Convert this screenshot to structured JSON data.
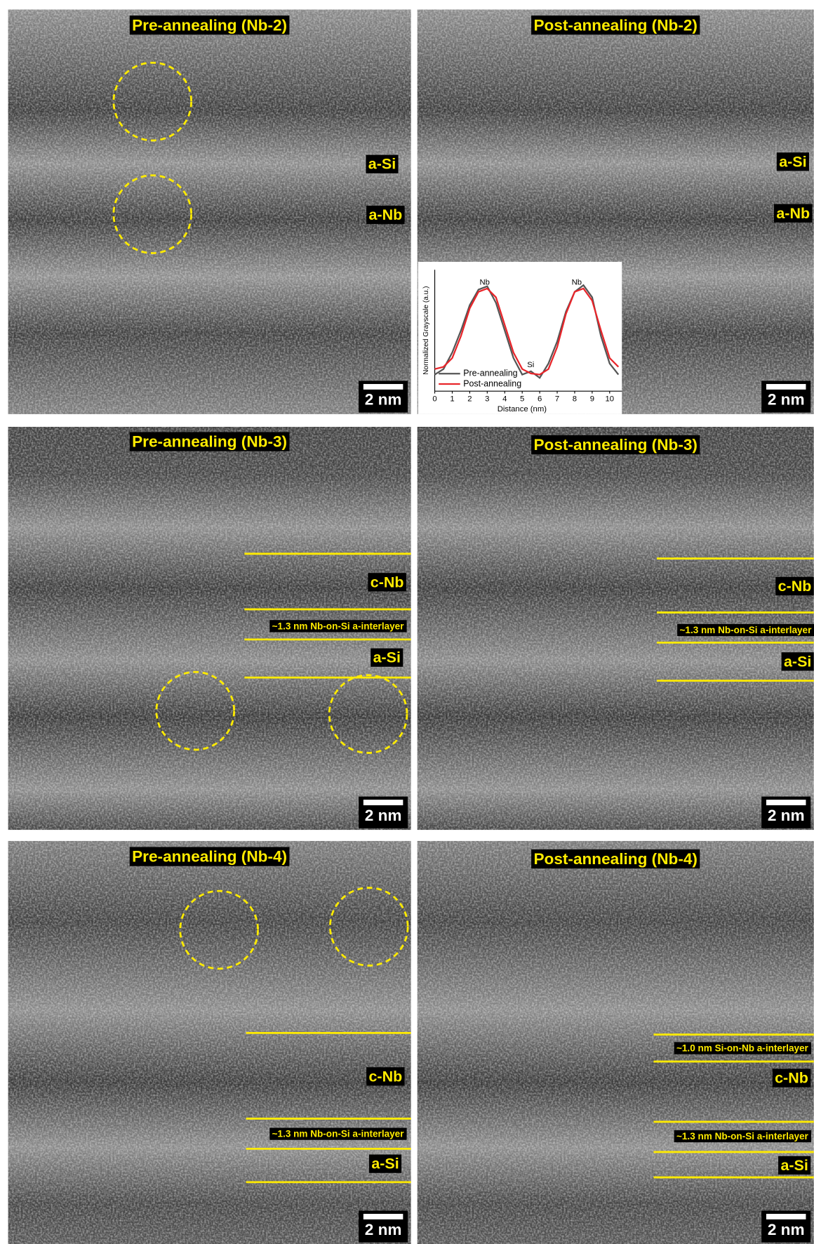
{
  "panels": [
    {
      "title": "Pre-annealing (Nb-2)",
      "labels": [
        "a-Si",
        "a-Nb"
      ],
      "scale_bar": "2 nm"
    },
    {
      "title": "Post-annealing (Nb-2)",
      "labels": [
        "a-Si",
        "a-Nb"
      ],
      "scale_bar": "2 nm"
    },
    {
      "title": "Pre-annealing (Nb-3)",
      "labels": [
        "c-Nb",
        "~1.3 nm Nb-on-Si a-interlayer",
        "a-Si"
      ],
      "scale_bar": "2 nm"
    },
    {
      "title": "Post-annealing (Nb-3)",
      "labels": [
        "c-Nb",
        "~1.3 nm Nb-on-Si a-interlayer",
        "a-Si"
      ],
      "scale_bar": "2 nm"
    },
    {
      "title": "Pre-annealing (Nb-4)",
      "labels": [
        "c-Nb",
        "~1.3 nm Nb-on-Si a-interlayer",
        "a-Si"
      ],
      "scale_bar": "2 nm"
    },
    {
      "title": "Post-annealing (Nb-4)",
      "labels": [
        "~1.0 nm Si-on-Nb a-interlayer",
        "c-Nb",
        "~1.3 nm Nb-on-Si a-interlayer",
        "a-Si"
      ],
      "scale_bar": "2 nm"
    }
  ],
  "chart_data": {
    "type": "line",
    "x_label": "Distance (nm)",
    "y_label": "Normalized Grayscale (a.u.)",
    "annotations": [
      "Nb",
      "Nb",
      "Si"
    ],
    "x": [
      0,
      0.5,
      1,
      1.5,
      2,
      2.5,
      3,
      3.5,
      4,
      4.5,
      5,
      5.5,
      6,
      6.5,
      7,
      7.5,
      8,
      8.5,
      9,
      9.5,
      10,
      10.5
    ],
    "series": [
      {
        "name": "Pre-annealing",
        "color": "#555555",
        "values": [
          0.15,
          0.2,
          0.35,
          0.55,
          0.78,
          0.92,
          0.95,
          0.8,
          0.55,
          0.3,
          0.15,
          0.18,
          0.12,
          0.25,
          0.45,
          0.72,
          0.9,
          0.96,
          0.85,
          0.5,
          0.25,
          0.15
        ]
      },
      {
        "name": "Post-annealing",
        "color": "#e8252a",
        "values": [
          0.2,
          0.22,
          0.3,
          0.5,
          0.75,
          0.9,
          0.93,
          0.85,
          0.6,
          0.35,
          0.2,
          0.16,
          0.15,
          0.2,
          0.4,
          0.7,
          0.9,
          0.93,
          0.82,
          0.55,
          0.3,
          0.22
        ]
      }
    ],
    "xlim": [
      0,
      10.7
    ],
    "ylim": [
      0,
      1.1
    ],
    "xticks": [
      0,
      1,
      2,
      3,
      4,
      5,
      6,
      7,
      8,
      9,
      10
    ]
  }
}
